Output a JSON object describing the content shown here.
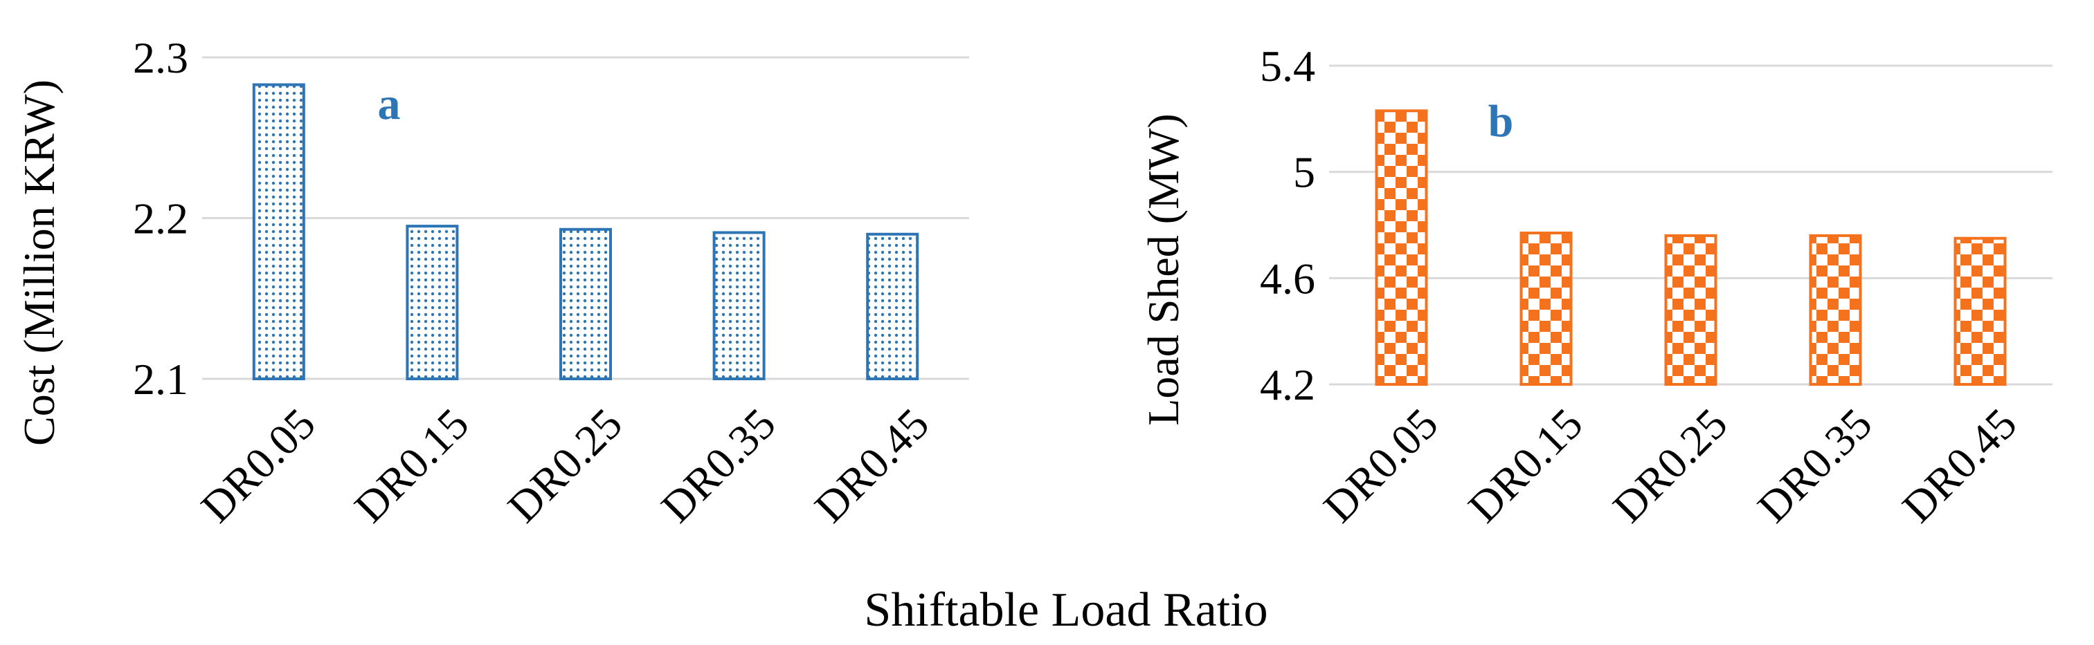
{
  "chart_data": [
    {
      "type": "bar",
      "panel_letter": "a",
      "ylabel": "Cost (Million KRW)",
      "categories": [
        "DR0.05",
        "DR0.15",
        "DR0.25",
        "DR0.35",
        "DR0.45"
      ],
      "values": [
        2.283,
        2.195,
        2.193,
        2.191,
        2.19
      ],
      "ylim": [
        2.1,
        2.3
      ],
      "yticks": [
        "2.1",
        "2.2",
        "2.3"
      ],
      "grid": true,
      "color": "#2e75b6",
      "pattern": "dotted"
    },
    {
      "type": "bar",
      "panel_letter": "b",
      "ylabel": "Load Shed (MW)",
      "categories": [
        "DR0.05",
        "DR0.15",
        "DR0.25",
        "DR0.35",
        "DR0.45"
      ],
      "values": [
        5.23,
        4.77,
        4.76,
        4.76,
        4.75
      ],
      "ylim": [
        4.2,
        5.4
      ],
      "yticks": [
        "4.2",
        "4.6",
        "5",
        "5.4"
      ],
      "grid": true,
      "color": "#f4711e",
      "pattern": "checkerboard"
    }
  ],
  "shared_xlabel": "Shiftable Load Ratio"
}
